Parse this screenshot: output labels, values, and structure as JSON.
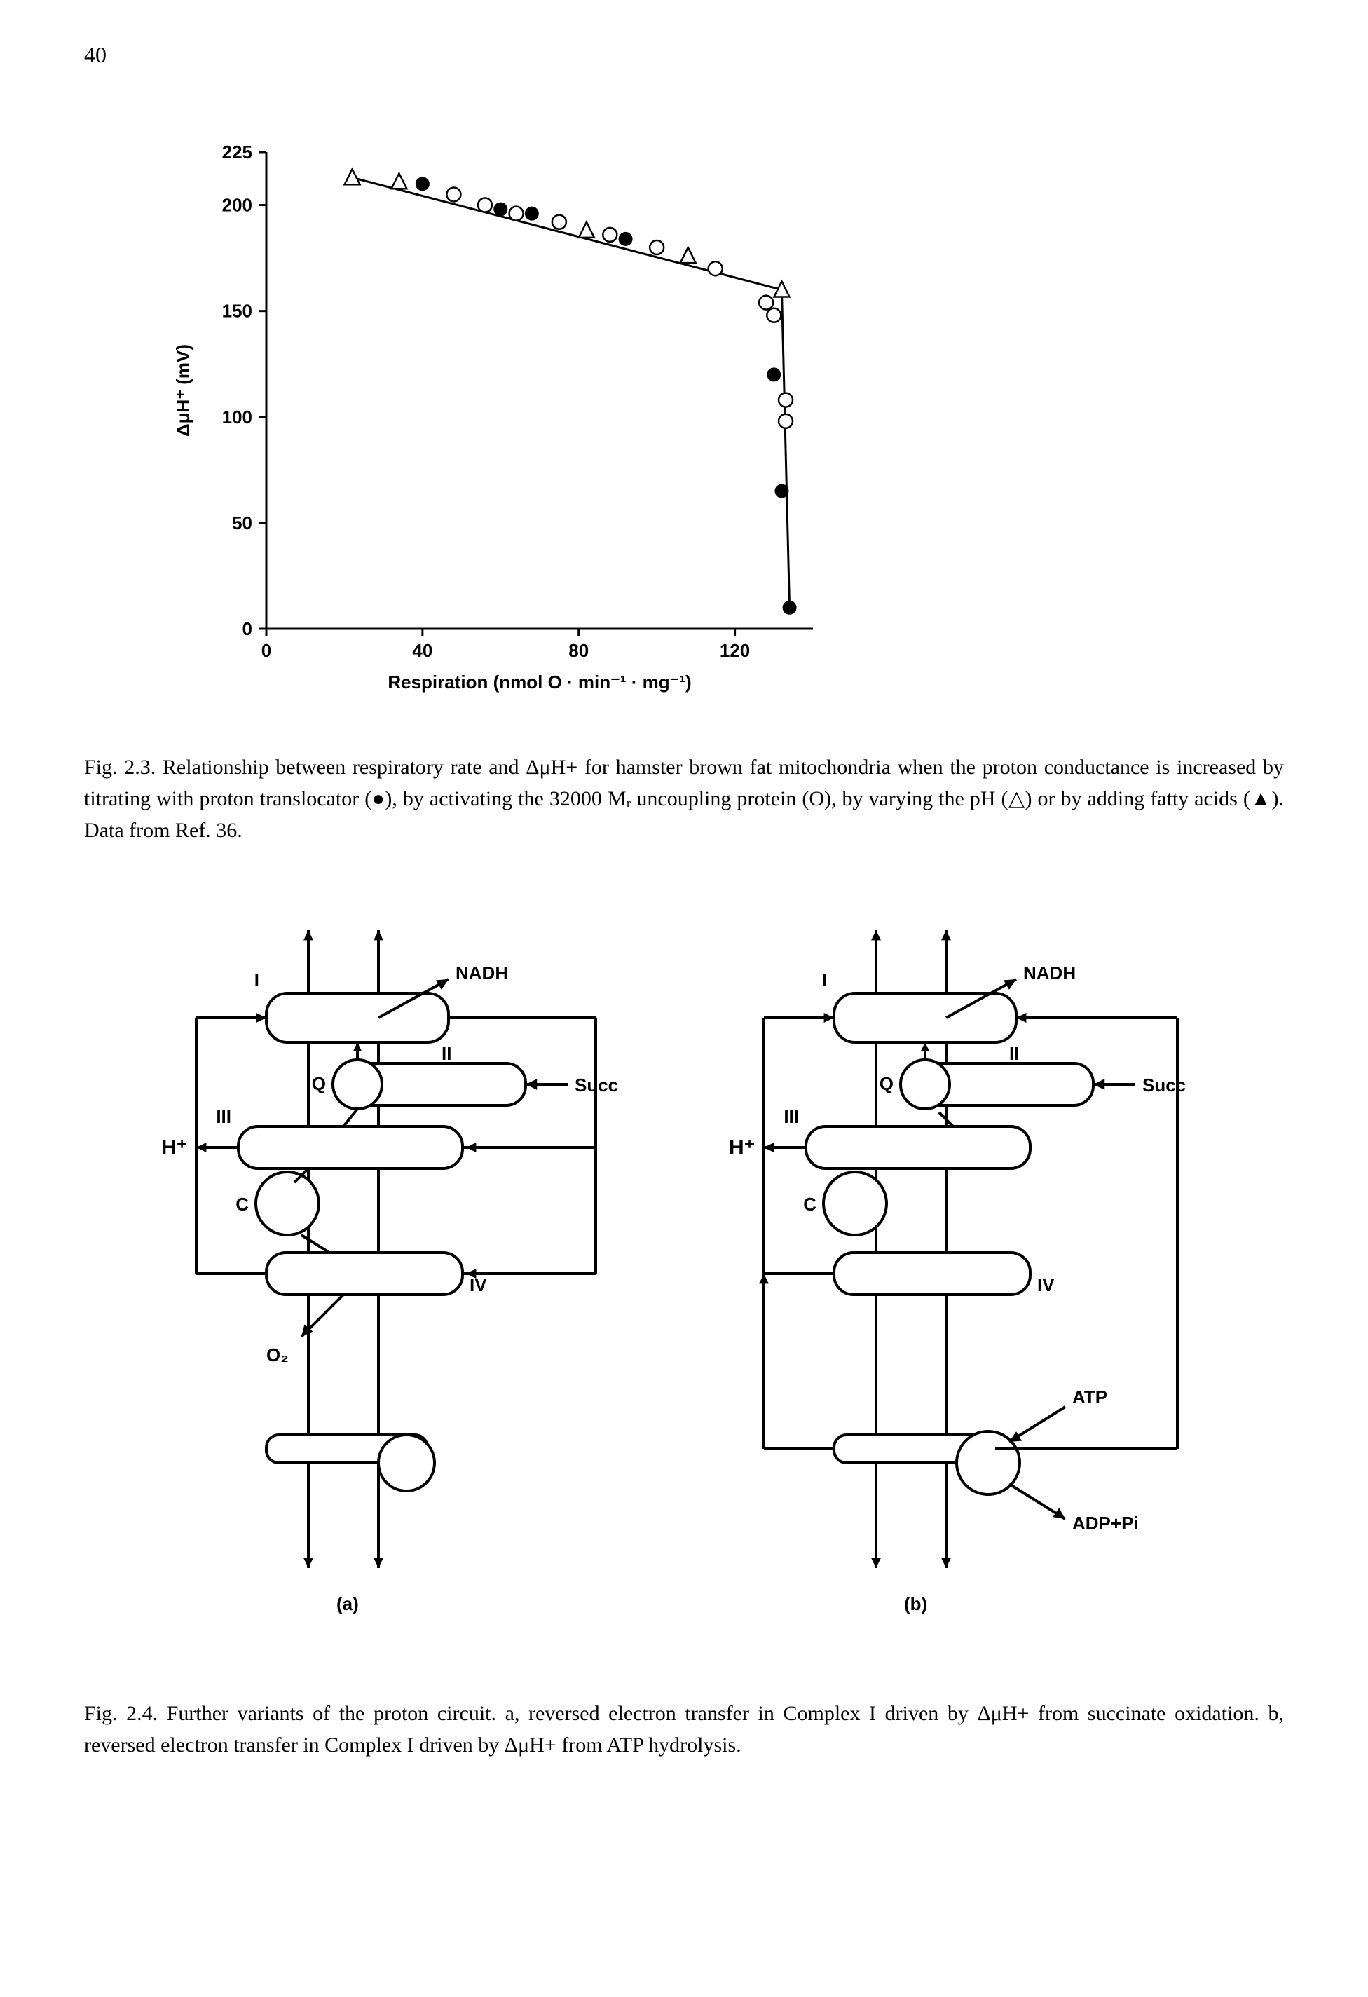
{
  "page_number": "40",
  "fig23": {
    "type": "scatter-line",
    "title": "",
    "x_axis": {
      "label": "Respiration (nmol O · min⁻¹ · mg⁻¹)",
      "lim": [
        0,
        140
      ],
      "ticks": [
        0,
        40,
        80,
        120
      ],
      "fontsize": 26,
      "label_fontsize": 26,
      "tick_length": 10
    },
    "y_axis": {
      "label": "ΔμH⁺ (mV)",
      "lim": [
        0,
        225
      ],
      "ticks": [
        0,
        50,
        100,
        150,
        200,
        225
      ],
      "fontsize": 26,
      "label_fontsize": 26,
      "tick_length": 10
    },
    "line_width": 3,
    "marker_size": 10,
    "line_segments": [
      {
        "x1": 22,
        "y1": 213,
        "x2": 132,
        "y2": 160
      },
      {
        "x1": 132,
        "y1": 160,
        "x2": 134,
        "y2": 10
      }
    ],
    "series": [
      {
        "name": "proton translocator",
        "marker": "filled-circle",
        "color": "#000000",
        "points": [
          {
            "x": 40,
            "y": 210
          },
          {
            "x": 60,
            "y": 198
          },
          {
            "x": 68,
            "y": 196
          },
          {
            "x": 92,
            "y": 184
          },
          {
            "x": 130,
            "y": 120
          },
          {
            "x": 132,
            "y": 65
          },
          {
            "x": 134,
            "y": 10
          }
        ]
      },
      {
        "name": "uncoupling protein 32000 Mr",
        "marker": "open-circle",
        "color": "#000000",
        "points": [
          {
            "x": 48,
            "y": 205
          },
          {
            "x": 56,
            "y": 200
          },
          {
            "x": 64,
            "y": 196
          },
          {
            "x": 75,
            "y": 192
          },
          {
            "x": 88,
            "y": 186
          },
          {
            "x": 100,
            "y": 180
          },
          {
            "x": 115,
            "y": 170
          },
          {
            "x": 128,
            "y": 154
          },
          {
            "x": 130,
            "y": 148
          },
          {
            "x": 133,
            "y": 108
          },
          {
            "x": 133,
            "y": 98
          }
        ]
      },
      {
        "name": "varying pH",
        "marker": "open-triangle",
        "color": "#000000",
        "points": [
          {
            "x": 22,
            "y": 213
          },
          {
            "x": 34,
            "y": 211
          },
          {
            "x": 82,
            "y": 188
          },
          {
            "x": 108,
            "y": 176
          },
          {
            "x": 132,
            "y": 160
          }
        ]
      },
      {
        "name": "fatty acids",
        "marker": "filled-triangle",
        "color": "#000000",
        "points": []
      }
    ],
    "plot_bg": "#ffffff",
    "axis_color": "#000000",
    "axis_width": 3,
    "caption": "Fig. 2.3. Relationship between respiratory rate and ΔμH+ for hamster brown fat mitochondria when the proton conductance is increased by titrating with proton translocator (●), by activating the 32000 Mᵣ uncoupling protein (O), by varying the pH (△) or by adding fatty acids (▲). Data from Ref. 36."
  },
  "fig24": {
    "type": "diagram",
    "font": "Arial",
    "label_fontsize": 26,
    "line_width": 4,
    "panels": [
      "(a)",
      "(b)"
    ],
    "labels_a": {
      "I": "I",
      "II": "II",
      "III": "III",
      "IV": "IV",
      "NADH": "NADH",
      "Succ": "Succ",
      "Q": "Q",
      "C": "C",
      "Hplus": "H⁺",
      "O2": "O₂"
    },
    "labels_b": {
      "I": "I",
      "II": "II",
      "III": "III",
      "IV": "IV",
      "NADH": "NADH",
      "Succ": "Succ",
      "Q": "Q",
      "C": "C",
      "Hplus": "H⁺",
      "ATP": "ATP",
      "ADPPi": "ADP+Pi"
    },
    "colors": {
      "stroke": "#000000",
      "fill": "#ffffff"
    },
    "caption": "Fig. 2.4. Further variants of the proton circuit. a, reversed electron transfer in Complex I driven by ΔμH+ from succinate oxidation. b, reversed electron transfer in Complex I driven by ΔμH+ from ATP hydrolysis."
  }
}
